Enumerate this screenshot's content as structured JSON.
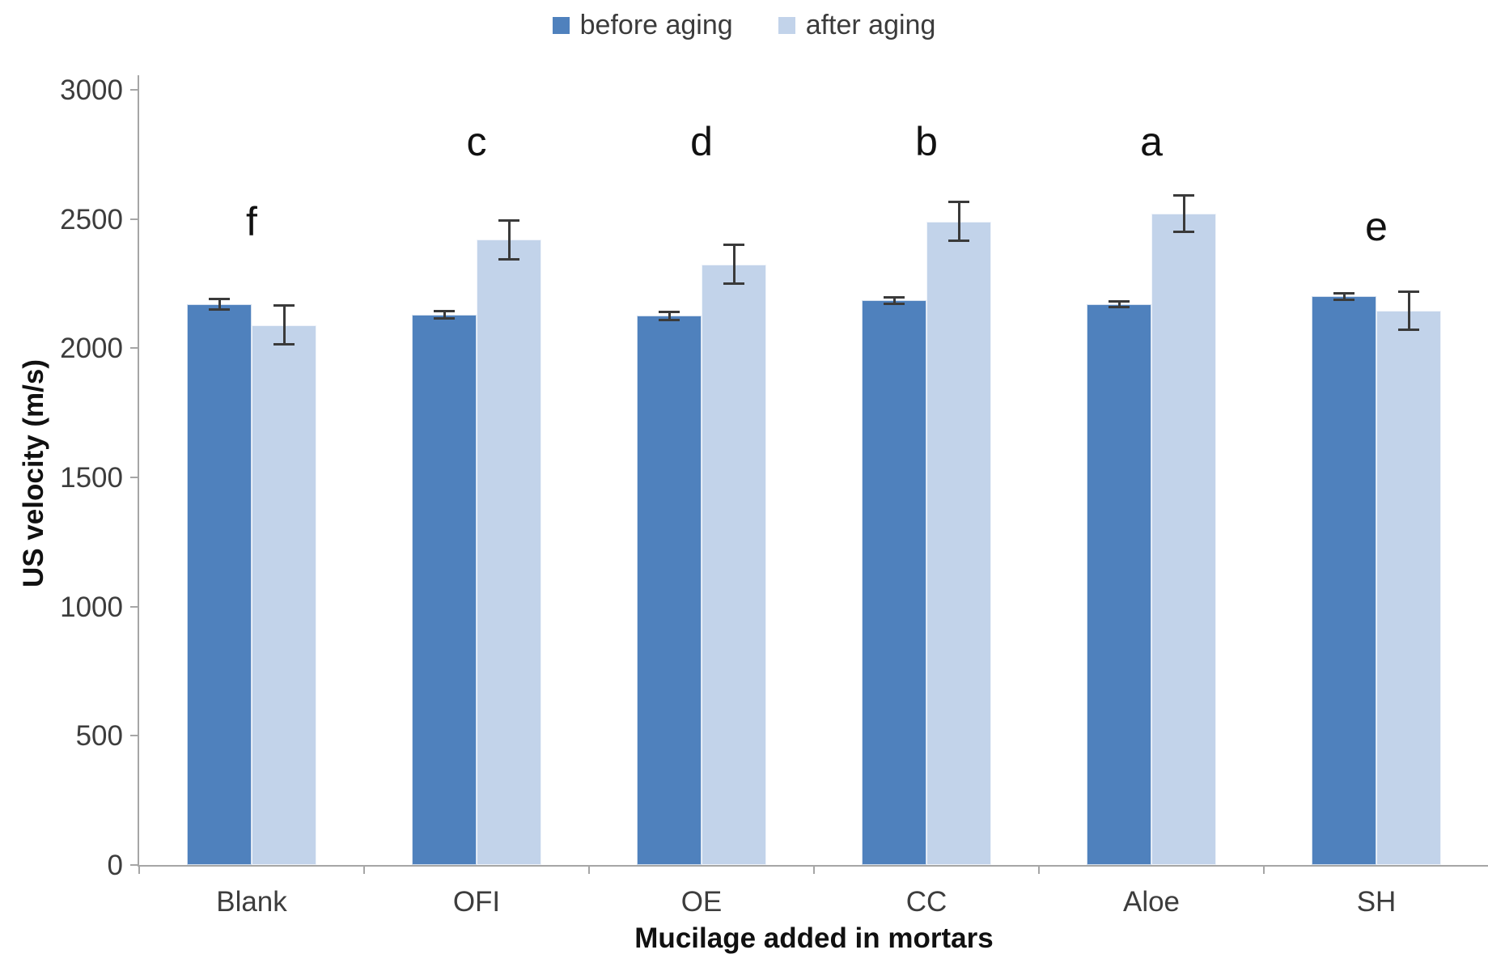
{
  "chart_data": {
    "type": "bar",
    "title": "",
    "xlabel": "Mucilage added in mortars",
    "ylabel": "US velocity (m/s)",
    "categories": [
      "Blank",
      "OFI",
      "OE",
      "CC",
      "Aloe",
      "SH"
    ],
    "series": [
      {
        "name": "before aging",
        "color": "#4f81bd",
        "values": [
          2170,
          2130,
          2125,
          2185,
          2170,
          2200
        ],
        "errors": [
          20,
          15,
          15,
          12,
          12,
          12
        ]
      },
      {
        "name": "after aging",
        "color": "#c2d3ea",
        "values": [
          2090,
          2420,
          2325,
          2490,
          2520,
          2145
        ],
        "errors": [
          75,
          75,
          75,
          75,
          70,
          75
        ]
      }
    ],
    "significance_letters": [
      {
        "category": "Blank",
        "letter": "f",
        "y": 2490
      },
      {
        "category": "OFI",
        "letter": "c",
        "y": 2800
      },
      {
        "category": "OE",
        "letter": "d",
        "y": 2800
      },
      {
        "category": "CC",
        "letter": "b",
        "y": 2800
      },
      {
        "category": "Aloe",
        "letter": "a",
        "y": 2800
      },
      {
        "category": "SH",
        "letter": "e",
        "y": 2470
      }
    ],
    "ylim": [
      0,
      3000
    ],
    "yticks": [
      0,
      500,
      1000,
      1500,
      2000,
      2500,
      3000
    ],
    "grid": false,
    "error_bars": true,
    "legend_position": "top-center",
    "axis_color": "#a6a6a6",
    "error_bar_color": "#3a3a3a"
  }
}
